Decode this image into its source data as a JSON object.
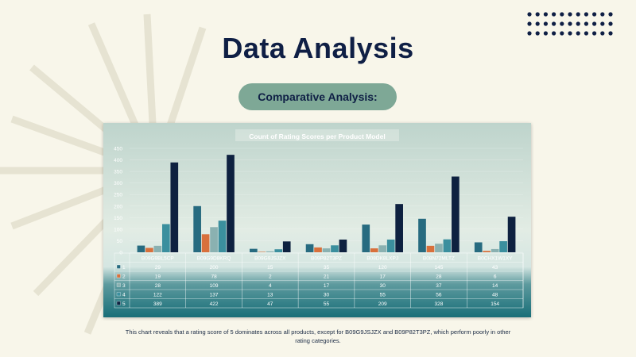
{
  "slide": {
    "title": "Data Analysis",
    "subtitle": "Comparative Analysis:",
    "caption": "This chart reveals that a rating score of 5 dominates across all products, except for B09G9JSJZX and B09P82T3PZ, which perform poorly in other rating categories."
  },
  "colors": {
    "background": "#f8f6ea",
    "title": "#0f1f45",
    "pill": "#7ea896",
    "accent_dots": "#0f1f45"
  },
  "chart_data": {
    "type": "bar",
    "title": "Count of Rating Scores per Product Model",
    "categories": [
      "B09G9BL5CP",
      "B09G9D8KRQ",
      "B09G9JSJZX",
      "B09P82T3PZ",
      "B08DK8LXPJ",
      "B08N72MLTZ",
      "B0CHX1W1XY"
    ],
    "series": [
      {
        "name": "1",
        "color": "#276b80",
        "values": [
          29,
          200,
          15,
          35,
          120,
          145,
          43
        ]
      },
      {
        "name": "2",
        "color": "#d8703c",
        "values": [
          19,
          78,
          2,
          21,
          17,
          28,
          6
        ]
      },
      {
        "name": "3",
        "color": "#8ab1b1",
        "values": [
          28,
          109,
          4,
          17,
          30,
          37,
          14
        ]
      },
      {
        "name": "4",
        "color": "#3b8f9e",
        "values": [
          122,
          137,
          13,
          30,
          55,
          56,
          48
        ]
      },
      {
        "name": "5",
        "color": "#0e2140",
        "values": [
          389,
          422,
          47,
          55,
          209,
          328,
          154
        ]
      }
    ],
    "yticks": [
      "450",
      "400",
      "350",
      "300",
      "250",
      "200",
      "150",
      "100",
      "50",
      "0"
    ],
    "ylim": [
      0,
      450
    ],
    "data_table": true,
    "legend": "data-table"
  }
}
